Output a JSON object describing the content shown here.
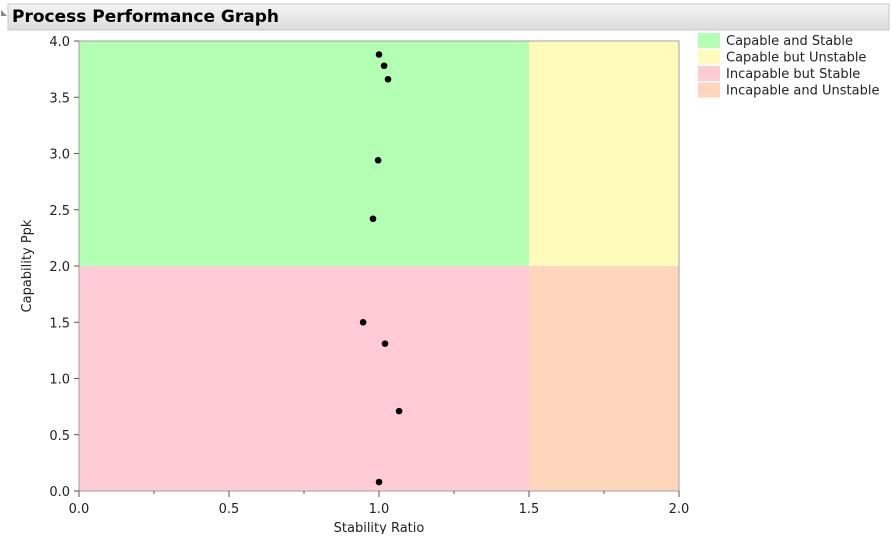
{
  "chart_data": {
    "type": "scatter",
    "title": "Process Performance Graph",
    "x_label": "Stability Ratio",
    "y_label": "Capability Ppk",
    "x": [
      1.0,
      1.017,
      1.03,
      0.997,
      0.98,
      0.947,
      1.02,
      1.067,
      1.0
    ],
    "values": [
      3.88,
      3.78,
      3.66,
      2.94,
      2.42,
      1.5,
      1.31,
      0.71,
      0.08
    ],
    "color": "#000000",
    "xlim": [
      0,
      2
    ],
    "ylim": [
      0,
      4
    ],
    "xticks": [
      {
        "value": 0,
        "label": "0.0"
      },
      {
        "value": 0.5,
        "label": "0.5"
      },
      {
        "value": 1,
        "label": "1.0"
      },
      {
        "value": 1.5,
        "label": "1.5"
      },
      {
        "value": 2,
        "label": "2.0"
      }
    ],
    "x_minor_ticks": [
      0.25,
      0.75,
      1.25,
      1.75
    ],
    "yticks": [
      {
        "value": 0,
        "label": "0.0"
      },
      {
        "value": 0.5,
        "label": "0.5"
      },
      {
        "value": 1,
        "label": "1.0"
      },
      {
        "value": 1.5,
        "label": "1.5"
      },
      {
        "value": 2,
        "label": "2.0"
      },
      {
        "value": 2.5,
        "label": "2.5"
      },
      {
        "value": 3,
        "label": "3.0"
      },
      {
        "value": 3.5,
        "label": "3.5"
      },
      {
        "value": 4,
        "label": "4.0"
      }
    ],
    "regions": [
      {
        "name": "Capable and Stable",
        "color": "#b3ffb3",
        "xlim": [
          0,
          1.5
        ],
        "ylim": [
          2,
          4
        ]
      },
      {
        "name": "Capable but Unstable",
        "color": "#fffcbb",
        "xlim": [
          1.5,
          2
        ],
        "ylim": [
          2,
          4
        ]
      },
      {
        "name": "Incapable but Stable",
        "color": "#ffccd5",
        "xlim": [
          0,
          1.5
        ],
        "ylim": [
          0,
          2
        ]
      },
      {
        "name": "Incapable and Unstable",
        "color": "#ffd5bb",
        "xlim": [
          1.5,
          2
        ],
        "ylim": [
          0,
          2
        ]
      }
    ]
  }
}
